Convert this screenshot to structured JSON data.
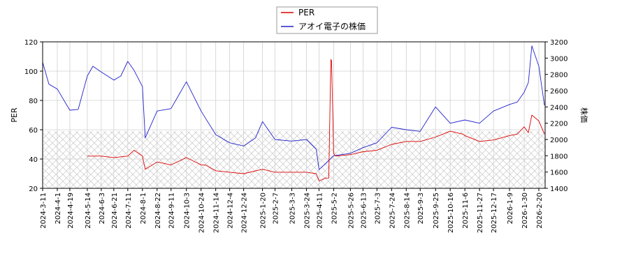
{
  "chart_data": {
    "type": "line",
    "title": "",
    "xlabel": "",
    "ylabel_left": "PER",
    "ylabel_right": "株価",
    "legend": {
      "placement": "top-center",
      "entries": [
        "PER",
        "アオイ電子の株価"
      ]
    },
    "grid": true,
    "hatched_band": {
      "axis": "left",
      "from": 20,
      "to": 59
    },
    "x_ticks": [
      "2024-3-11",
      "2024-4-1",
      "2024-4-19",
      "2024-5-14",
      "2024-6-3",
      "2024-6-21",
      "2024-7-11",
      "2024-8-1",
      "2024-8-22",
      "2024-9-11",
      "2024-10-3",
      "2024-10-24",
      "2024-11-14",
      "2024-12-4",
      "2024-12-24",
      "2025-1-20",
      "2025-2-7",
      "2025-3-3",
      "2025-3-24",
      "2025-4-11",
      "2025-5-2",
      "2025-5-26",
      "2025-6-13",
      "2025-7-3",
      "2025-7-24",
      "2025-8-14",
      "2025-9-3",
      "2025-9-25",
      "2025-10-16",
      "2025-11-6",
      "2025-11-27",
      "2025-12-17",
      "2026-1-9",
      "2026-1-30",
      "2026-2-20"
    ],
    "y_left": {
      "ylim": [
        20,
        120
      ],
      "ticks": [
        20,
        40,
        60,
        80,
        100,
        120
      ]
    },
    "y_right": {
      "ylim": [
        1400,
        3200
      ],
      "ticks": [
        1400,
        1600,
        1800,
        2000,
        2200,
        2400,
        2600,
        2800,
        3000,
        3200
      ]
    },
    "series": [
      {
        "name": "PER",
        "axis": "left",
        "color": "#dd0000",
        "x": [
          "2024-5-14",
          "2024-6-3",
          "2024-6-21",
          "2024-7-11",
          "2024-7-20",
          "2024-8-1",
          "2024-8-5",
          "2024-8-22",
          "2024-9-11",
          "2024-10-3",
          "2024-10-24",
          "2024-10-30",
          "2024-11-14",
          "2024-12-4",
          "2024-12-24",
          "2025-1-20",
          "2025-2-7",
          "2025-3-3",
          "2025-3-24",
          "2025-4-7",
          "2025-4-11",
          "2025-4-20",
          "2025-4-25",
          "2025-4-28",
          "2025-4-29",
          "2025-5-2",
          "2025-5-3",
          "2025-5-5",
          "2025-5-26",
          "2025-6-13",
          "2025-7-3",
          "2025-7-24",
          "2025-8-14",
          "2025-9-3",
          "2025-9-25",
          "2025-10-16",
          "2025-11-3",
          "2025-11-6",
          "2025-11-27",
          "2025-12-17",
          "2026-1-9",
          "2026-1-20",
          "2026-1-30",
          "2026-2-5",
          "2026-2-10",
          "2026-2-20",
          "2026-2-28"
        ],
        "values": [
          42,
          42,
          41,
          42,
          46,
          42,
          33,
          38,
          36,
          41,
          36,
          36,
          32,
          31,
          30,
          33,
          31,
          31,
          31,
          30,
          25,
          27,
          27,
          108,
          107,
          44,
          43,
          42,
          43,
          45,
          46,
          50,
          52,
          52,
          55,
          59,
          57,
          56,
          52,
          53,
          56,
          57,
          62,
          58,
          70,
          66,
          57
        ]
      },
      {
        "name": "アオイ電子の株価",
        "axis": "right",
        "color": "#2222cc",
        "x": [
          "2024-3-11",
          "2024-3-20",
          "2024-4-1",
          "2024-4-19",
          "2024-5-1",
          "2024-5-14",
          "2024-5-22",
          "2024-6-3",
          "2024-6-21",
          "2024-7-1",
          "2024-7-11",
          "2024-7-20",
          "2024-8-1",
          "2024-8-5",
          "2024-8-22",
          "2024-9-11",
          "2024-10-3",
          "2024-10-24",
          "2024-11-14",
          "2024-12-4",
          "2024-12-24",
          "2025-1-10",
          "2025-1-20",
          "2025-2-7",
          "2025-3-3",
          "2025-3-24",
          "2025-4-7",
          "2025-4-11",
          "2025-4-20",
          "2025-5-2",
          "2025-5-26",
          "2025-6-13",
          "2025-7-3",
          "2025-7-24",
          "2025-8-14",
          "2025-9-3",
          "2025-9-25",
          "2025-10-16",
          "2025-11-6",
          "2025-11-27",
          "2025-12-17",
          "2026-1-9",
          "2026-1-20",
          "2026-1-30",
          "2026-2-5",
          "2026-2-10",
          "2026-2-20",
          "2026-2-28"
        ],
        "values": [
          2950,
          2680,
          2620,
          2360,
          2370,
          2780,
          2900,
          2830,
          2730,
          2780,
          2960,
          2850,
          2650,
          2020,
          2350,
          2380,
          2710,
          2350,
          2060,
          1960,
          1920,
          2020,
          2220,
          2000,
          1980,
          2000,
          1880,
          1630,
          1700,
          1800,
          1830,
          1900,
          1960,
          2150,
          2120,
          2100,
          2400,
          2200,
          2240,
          2200,
          2350,
          2430,
          2460,
          2580,
          2700,
          3150,
          2900,
          2420
        ]
      }
    ]
  }
}
